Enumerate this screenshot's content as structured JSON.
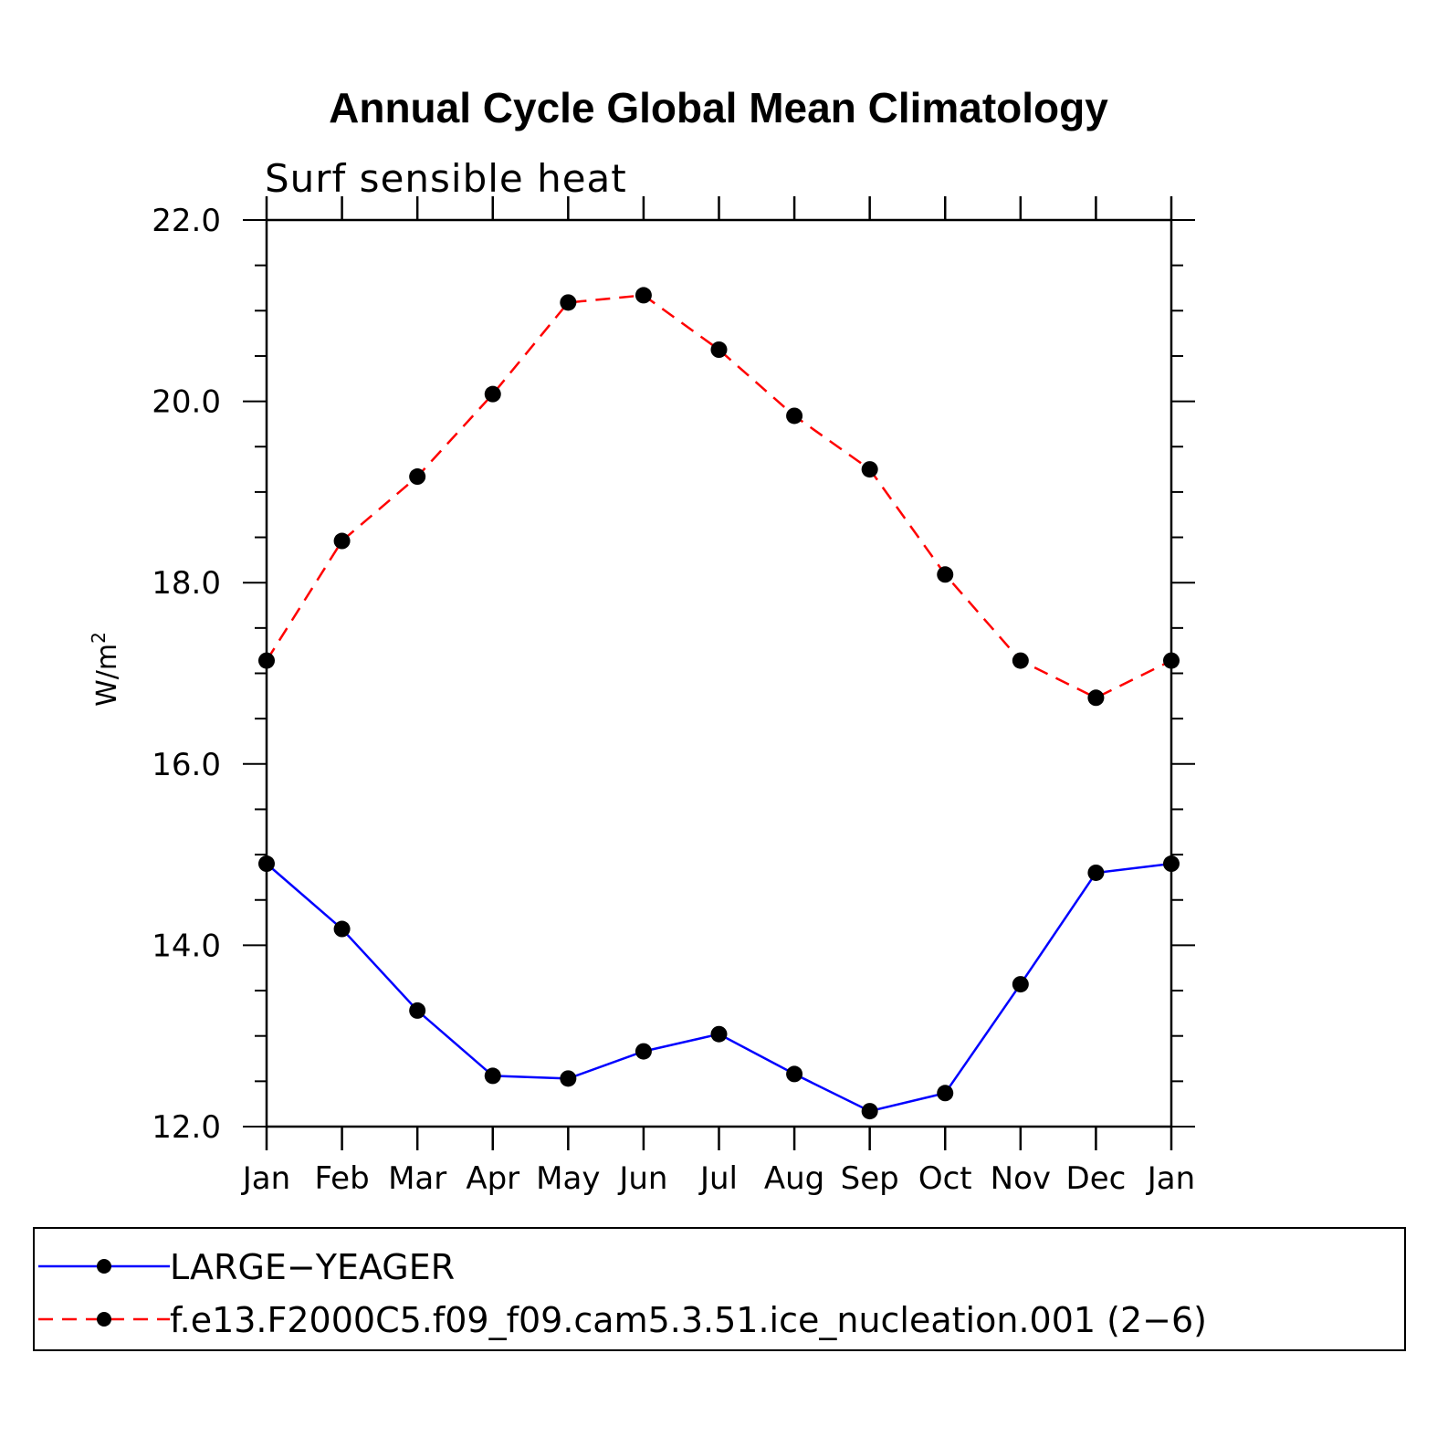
{
  "chart_data": {
    "type": "line",
    "title": "Annual Cycle Global Mean Climatology",
    "subtitle": "Surf  sensible  heat",
    "ylabel_base": "W/m",
    "ylabel_sup": "2",
    "xlabel": "",
    "categories": [
      "Jan",
      "Feb",
      "Mar",
      "Apr",
      "May",
      "Jun",
      "Jul",
      "Aug",
      "Sep",
      "Oct",
      "Nov",
      "Dec",
      "Jan"
    ],
    "ylim": [
      12.0,
      22.0
    ],
    "yticks": [
      "12.0",
      "14.0",
      "16.0",
      "18.0",
      "20.0",
      "22.0"
    ],
    "ytick_values": [
      12,
      14,
      16,
      18,
      20,
      22
    ],
    "grid": false,
    "legend_position": "bottom",
    "series": [
      {
        "name": "LARGE−YEAGER",
        "color": "#0000ff",
        "dash": "solid",
        "values": [
          14.9,
          14.18,
          13.28,
          12.56,
          12.53,
          12.83,
          13.02,
          12.58,
          12.17,
          12.37,
          13.57,
          14.8,
          14.9
        ]
      },
      {
        "name": "f.e13.F2000C5.f09_f09.cam5.3.51.ice_nucleation.001 (2−6)",
        "color": "#ff0000",
        "dash": "dashed",
        "values": [
          17.14,
          18.46,
          19.17,
          20.08,
          21.09,
          21.17,
          20.57,
          19.84,
          19.25,
          18.09,
          17.14,
          16.73,
          17.14
        ]
      }
    ],
    "marker_color": "#000000"
  }
}
